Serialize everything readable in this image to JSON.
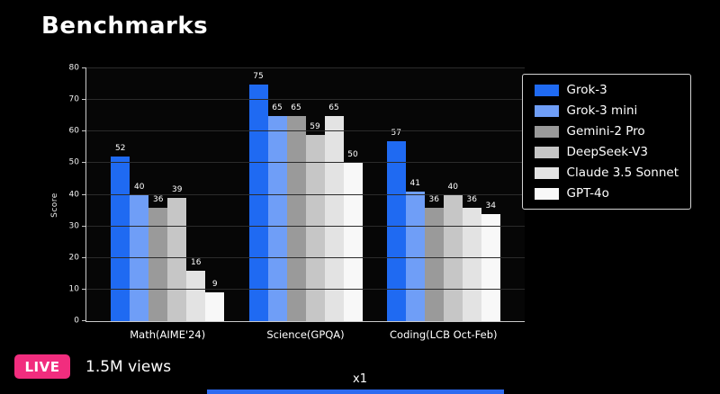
{
  "page": {
    "title": "Benchmarks"
  },
  "chart_data": {
    "type": "bar",
    "title": "Benchmarks",
    "categories": [
      "Math(AIME'24)",
      "Science(GPQA)",
      "Coding(LCB Oct-Feb)"
    ],
    "series": [
      {
        "name": "Grok-3",
        "color": "#1f6af2",
        "values": [
          52,
          75,
          57
        ]
      },
      {
        "name": "Grok-3 mini",
        "color": "#6f9ef7",
        "values": [
          40,
          65,
          41
        ]
      },
      {
        "name": "Gemini-2 Pro",
        "color": "#9a9a9a",
        "values": [
          36,
          65,
          36
        ]
      },
      {
        "name": "DeepSeek-V3",
        "color": "#c6c6c6",
        "values": [
          39,
          59,
          40
        ]
      },
      {
        "name": "Claude 3.5 Sonnet",
        "color": "#e3e3e3",
        "values": [
          16,
          65,
          36
        ]
      },
      {
        "name": "GPT-4o",
        "color": "#f8f8f8",
        "values": [
          9,
          50,
          34
        ]
      }
    ],
    "xlabel": "",
    "ylabel": "Score",
    "ylim": [
      0,
      80
    ],
    "yticks": [
      0,
      10,
      20,
      30,
      40,
      50,
      60,
      70,
      80
    ],
    "grid": true,
    "legend_position": "outside upper right"
  },
  "footer": {
    "live_label": "LIVE",
    "views": "1.5M views",
    "watermark": "x1"
  },
  "colors": {
    "background": "#000000",
    "live_badge": "#f12d7e",
    "progress": "#2e6bf0"
  }
}
